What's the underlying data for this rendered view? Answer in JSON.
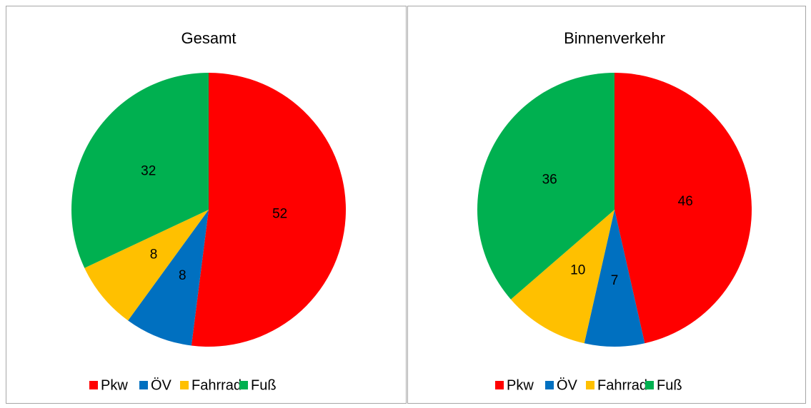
{
  "chart_data": [
    {
      "type": "pie",
      "title": "Gesamt",
      "categories": [
        "Pkw",
        "ÖV",
        "Fahrrad",
        "Fuß"
      ],
      "values": [
        52,
        8,
        8,
        32
      ],
      "colors": [
        "#ff0000",
        "#0070c0",
        "#ffc000",
        "#00b050"
      ],
      "legend": "bottom"
    },
    {
      "type": "pie",
      "title": "Binnenverkehr",
      "categories": [
        "Pkw",
        "ÖV",
        "Fahrrad",
        "Fuß"
      ],
      "values": [
        46,
        7,
        10,
        36
      ],
      "colors": [
        "#ff0000",
        "#0070c0",
        "#ffc000",
        "#00b050"
      ],
      "legend": "bottom"
    }
  ]
}
